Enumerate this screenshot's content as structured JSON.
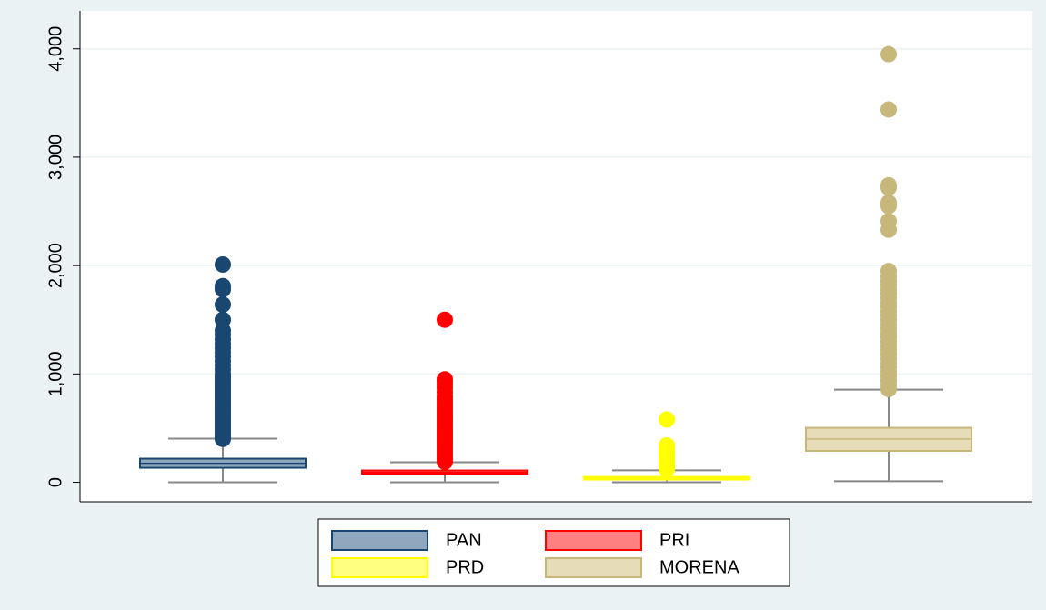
{
  "chart_data": {
    "type": "box",
    "ylim": [
      -180,
      4350
    ],
    "yticks": [
      0,
      {
        "value": 1000,
        "label": "1,000"
      },
      {
        "value": 2000,
        "label": "2,000"
      },
      {
        "value": 3000,
        "label": "3,000"
      },
      {
        "value": 4000,
        "label": "4,000"
      }
    ],
    "grid": true,
    "legend": "bottom",
    "series": [
      {
        "name": "PAN",
        "color": "#1a476f",
        "fill": "#90a8be",
        "whisker_low": 0,
        "q1": 134,
        "median": 176,
        "q3": 218,
        "whisker_high": 403,
        "outliers": [
          400,
          425,
          450,
          475,
          500,
          525,
          550,
          575,
          600,
          625,
          650,
          675,
          700,
          725,
          750,
          775,
          800,
          825,
          850,
          875,
          900,
          925,
          950,
          975,
          1000,
          1040,
          1080,
          1120,
          1160,
          1200,
          1240,
          1280,
          1320,
          1360,
          1400,
          1500,
          1640,
          1780,
          1810,
          2010
        ]
      },
      {
        "name": "PRI",
        "color": "#ff0000",
        "fill": "#ff8080",
        "whisker_low": 0,
        "q1": 80,
        "median": 92,
        "q3": 109,
        "whisker_high": 185,
        "outliers": [
          190,
          215,
          240,
          265,
          290,
          315,
          340,
          365,
          390,
          415,
          440,
          465,
          490,
          515,
          540,
          565,
          590,
          615,
          640,
          665,
          690,
          715,
          740,
          765,
          790,
          830,
          870,
          900,
          930,
          950,
          1500
        ]
      },
      {
        "name": "PRD",
        "color": "#ffff00",
        "fill": "#ffff80",
        "whisker_low": 0,
        "q1": 25,
        "median": 35,
        "q3": 50,
        "whisker_high": 110,
        "outliers": [
          120,
          140,
          160,
          180,
          200,
          220,
          240,
          260,
          280,
          300,
          320,
          340,
          580
        ]
      },
      {
        "name": "MORENA",
        "color": "#c8b77a",
        "fill": "#e6dcb8",
        "whisker_low": 10,
        "q1": 290,
        "median": 400,
        "q3": 503,
        "whisker_high": 855,
        "outliers": [
          860,
          900,
          940,
          980,
          1020,
          1060,
          1100,
          1140,
          1180,
          1220,
          1260,
          1300,
          1340,
          1380,
          1420,
          1460,
          1500,
          1540,
          1580,
          1620,
          1660,
          1700,
          1740,
          1780,
          1820,
          1860,
          1900,
          1950,
          2330,
          2410,
          2550,
          2580,
          2720,
          2740,
          3440,
          3950
        ]
      }
    ]
  }
}
